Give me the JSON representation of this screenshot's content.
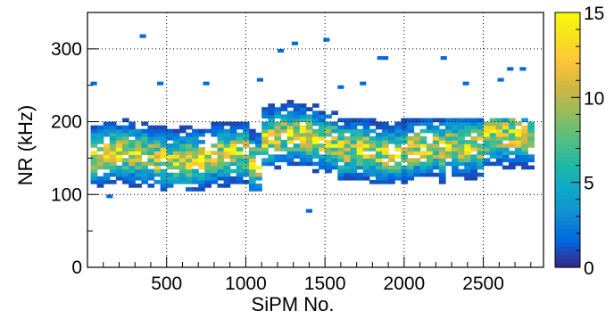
{
  "chart_data": {
    "type": "heatmap",
    "xlabel": "SiPM No.",
    "ylabel": "NR (kHz)",
    "xlim": [
      0,
      2880
    ],
    "ylim": [
      0,
      350
    ],
    "x_ticks": [
      500,
      1000,
      1500,
      2000,
      2500
    ],
    "x_tick_labels": [
      "500",
      "1000",
      "1500",
      "2000",
      "2500"
    ],
    "y_ticks": [
      0,
      100,
      200,
      300
    ],
    "y_tick_labels": [
      "0",
      "100",
      "200",
      "300"
    ],
    "grid": true,
    "colorbar": {
      "min": 0,
      "max": 15,
      "ticks": [
        0,
        5,
        10,
        15
      ],
      "tick_labels": [
        "0",
        "5",
        "10",
        "15"
      ],
      "palette": [
        "#352a87",
        "#0268e1",
        "#108ed2",
        "#0fa8c8",
        "#21b8a4",
        "#55bf82",
        "#97bc5c",
        "#d0b640",
        "#fec53b",
        "#f5e11c",
        "#f9fb0e"
      ]
    },
    "bin_width_x": 40,
    "bin_width_y": 5,
    "structure": {
      "x_range": [
        20,
        2780
      ],
      "core_y_range": [
        115,
        200
      ],
      "hot_y_range": [
        130,
        180
      ],
      "notable_outliers": [
        {
          "x": 330,
          "y": 315
        },
        {
          "x": 1290,
          "y": 305
        },
        {
          "x": 1490,
          "y": 310
        },
        {
          "x": 1200,
          "y": 295
        },
        {
          "x": 1830,
          "y": 285
        },
        {
          "x": 1860,
          "y": 285
        },
        {
          "x": 2230,
          "y": 285
        },
        {
          "x": 2650,
          "y": 270
        },
        {
          "x": 2730,
          "y": 270
        },
        {
          "x": 20,
          "y": 250
        },
        {
          "x": 440,
          "y": 250
        },
        {
          "x": 730,
          "y": 250
        },
        {
          "x": 1070,
          "y": 255
        },
        {
          "x": 1580,
          "y": 245
        },
        {
          "x": 1720,
          "y": 250
        },
        {
          "x": 2370,
          "y": 250
        },
        {
          "x": 2590,
          "y": 255
        },
        {
          "x": 1380,
          "y": 75
        },
        {
          "x": 120,
          "y": 95
        }
      ]
    }
  }
}
